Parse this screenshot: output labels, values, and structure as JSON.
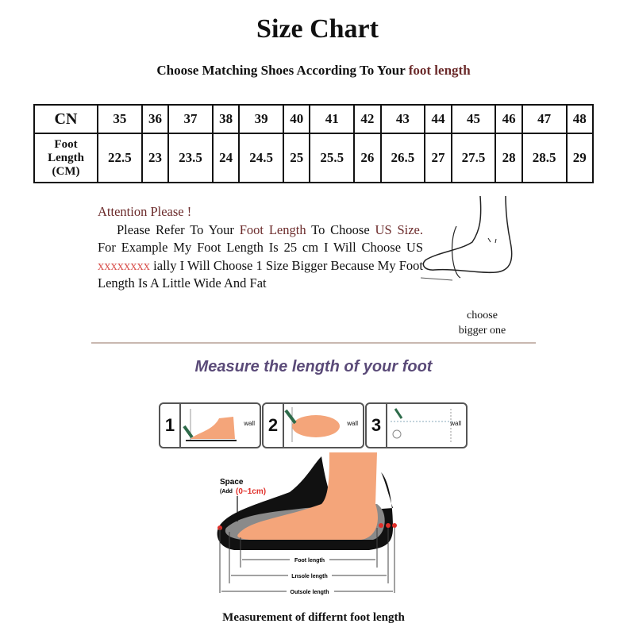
{
  "title": "Size Chart",
  "subtitle": {
    "prefix": "Choose Matching Shoes According To Your ",
    "highlight": "foot length"
  },
  "table": {
    "row_headers": {
      "cn": "CN",
      "foot_length": [
        "Foot",
        "Length",
        "(CM)"
      ]
    },
    "cn": [
      "35",
      "36",
      "37",
      "38",
      "39",
      "40",
      "41",
      "42",
      "43",
      "44",
      "45",
      "46",
      "47",
      "48"
    ],
    "foot_length_cm": [
      "22.5",
      "23",
      "23.5",
      "24",
      "24.5",
      "25",
      "25.5",
      "26",
      "26.5",
      "27",
      "27.5",
      "28",
      "28.5",
      "29"
    ]
  },
  "attention": {
    "heading": "Attention Please !",
    "t1": "Please Refer To Your ",
    "t2": "Foot Length",
    "t3": " To Choose ",
    "t4": "US Size.",
    "t5": " For Example My Foot Length Is 25 cm I Will Choose US ",
    "t6": "xxxxxxxx",
    "t7": " ially I Will Choose 1 Size Bigger Because My Foot Length Is A Little Wide And Fat"
  },
  "choose_bigger": [
    "choose",
    "bigger one"
  ],
  "measure_heading": "Measure the length of your foot",
  "steps": [
    {
      "num": "1",
      "wall": "wall"
    },
    {
      "num": "2",
      "wall": "wall"
    },
    {
      "num": "3",
      "wall": "wall"
    }
  ],
  "diagram": {
    "space": "Space",
    "space_add": "(Add",
    "space_range": "(0~1cm)",
    "foot_length": "Foot length",
    "insole_length": "Lnsole length",
    "outsole_length": "Outsole length"
  },
  "caption": "Measurement of differnt foot length",
  "colors": {
    "accent_text": "#6b2a2a",
    "heading_purple": "#5a4a78",
    "skin": "#f4a57a",
    "range_red": "#e0302a"
  }
}
